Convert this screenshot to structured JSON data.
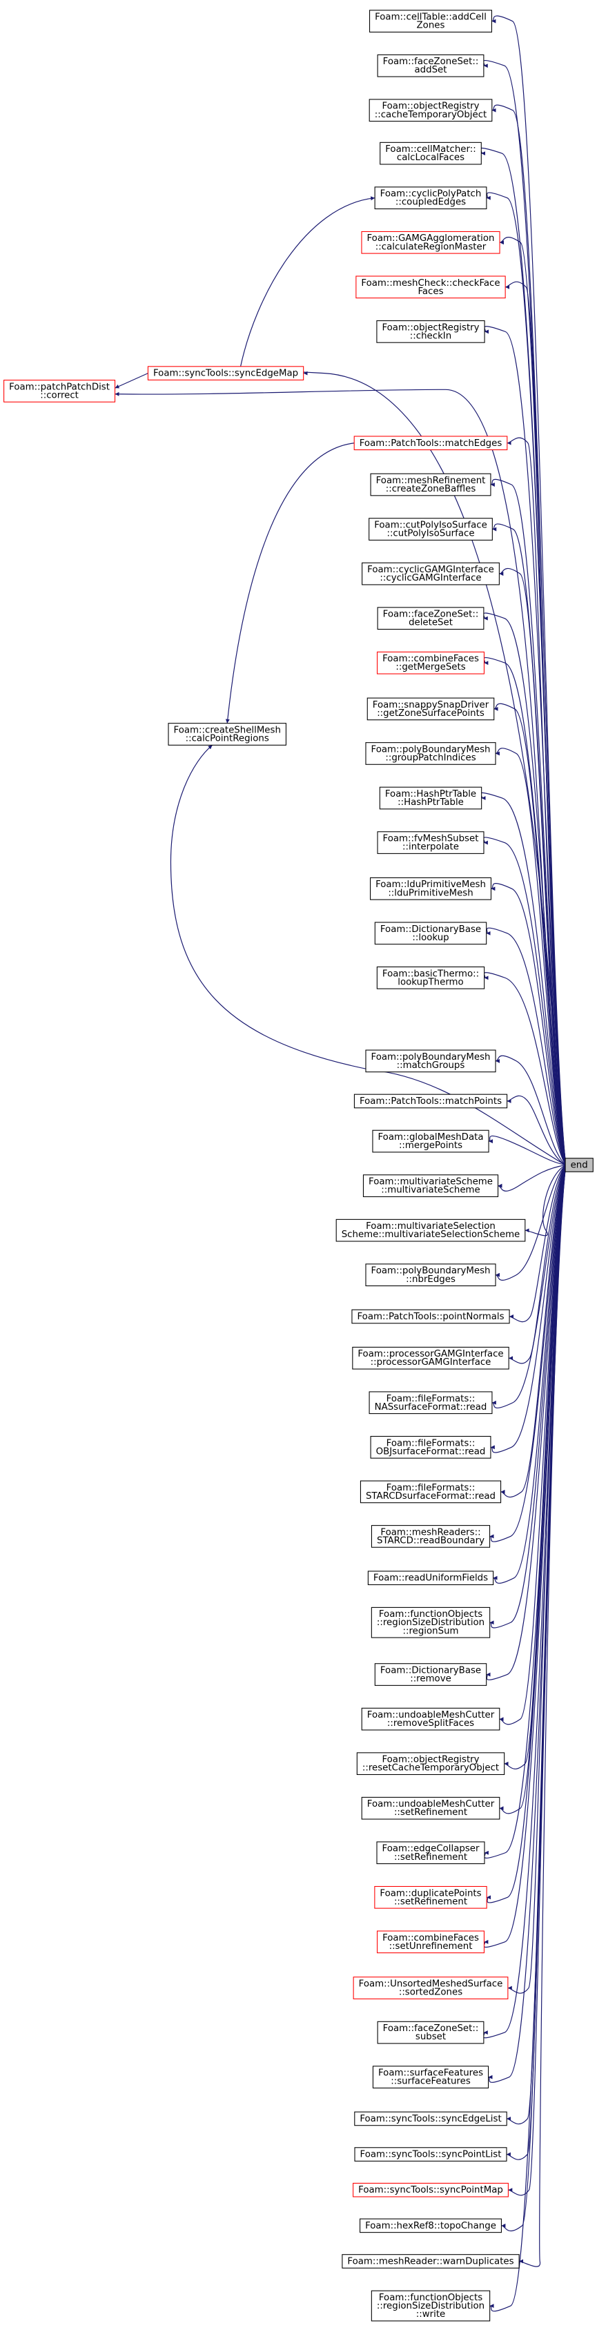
{
  "nodes": [
    {
      "lines": [
        "end"
      ]
    },
    {
      "lines": [
        "Foam::cellTable::addCell",
        "Zones"
      ]
    },
    {
      "lines": [
        "Foam::faceZoneSet::",
        "addSet"
      ]
    },
    {
      "lines": [
        "Foam::objectRegistry",
        "::cacheTemporaryObject"
      ]
    },
    {
      "lines": [
        "Foam::cellMatcher::",
        "calcLocalFaces"
      ]
    },
    {
      "lines": [
        "Foam::cyclicPolyPatch",
        "::coupledEdges"
      ]
    },
    {
      "lines": [
        "Foam::GAMGAgglomeration",
        "::calculateRegionMaster"
      ]
    },
    {
      "lines": [
        "Foam::meshCheck::checkFace",
        "Faces"
      ]
    },
    {
      "lines": [
        "Foam::objectRegistry",
        "::checkIn"
      ]
    },
    {
      "lines": [
        "Foam::syncTools::syncEdgeMap"
      ]
    },
    {
      "lines": [
        "Foam::patchPatchDist",
        "::correct"
      ]
    },
    {
      "lines": [
        "Foam::PatchTools::matchEdges"
      ]
    },
    {
      "lines": [
        "Foam::meshRefinement",
        "::createZoneBaffles"
      ]
    },
    {
      "lines": [
        "Foam::cutPolyIsoSurface",
        "::cutPolyIsoSurface"
      ]
    },
    {
      "lines": [
        "Foam::cyclicGAMGInterface",
        "::cyclicGAMGInterface"
      ]
    },
    {
      "lines": [
        "Foam::faceZoneSet::",
        "deleteSet"
      ]
    },
    {
      "lines": [
        "Foam::combineFaces",
        "::getMergeSets"
      ]
    },
    {
      "lines": [
        "Foam::snappySnapDriver",
        "::getZoneSurfacePoints"
      ]
    },
    {
      "lines": [
        "Foam::polyBoundaryMesh",
        "::groupPatchIndices"
      ]
    },
    {
      "lines": [
        "Foam::createShellMesh",
        "::calcPointRegions"
      ]
    },
    {
      "lines": [
        "Foam::HashPtrTable",
        "::HashPtrTable"
      ]
    },
    {
      "lines": [
        "Foam::fvMeshSubset",
        "::interpolate"
      ]
    },
    {
      "lines": [
        "Foam::lduPrimitiveMesh",
        "::lduPrimitiveMesh"
      ]
    },
    {
      "lines": [
        "Foam::DictionaryBase",
        "::lookup"
      ]
    },
    {
      "lines": [
        "Foam::basicThermo::",
        "lookupThermo"
      ]
    },
    {
      "lines": [
        "Foam::polyBoundaryMesh",
        "::matchGroups"
      ]
    },
    {
      "lines": [
        "Foam::PatchTools::matchPoints"
      ]
    },
    {
      "lines": [
        "Foam::globalMeshData",
        "::mergePoints"
      ]
    },
    {
      "lines": [
        "Foam::multivariateScheme",
        "::multivariateScheme"
      ]
    },
    {
      "lines": [
        "Foam::multivariateSelection",
        "Scheme::multivariateSelectionScheme"
      ]
    },
    {
      "lines": [
        "Foam::polyBoundaryMesh",
        "::nbrEdges"
      ]
    },
    {
      "lines": [
        "Foam::PatchTools::pointNormals"
      ]
    },
    {
      "lines": [
        "Foam::processorGAMGInterface",
        "::processorGAMGInterface"
      ]
    },
    {
      "lines": [
        "Foam::fileFormats::",
        "NASsurfaceFormat::read"
      ]
    },
    {
      "lines": [
        "Foam::fileFormats::",
        "OBJsurfaceFormat::read"
      ]
    },
    {
      "lines": [
        "Foam::fileFormats::",
        "STARCDsurfaceFormat::read"
      ]
    },
    {
      "lines": [
        "Foam::meshReaders::",
        "STARCD::readBoundary"
      ]
    },
    {
      "lines": [
        "Foam::readUniformFields"
      ]
    },
    {
      "lines": [
        "Foam::functionObjects",
        "::regionSizeDistribution",
        "::regionSum"
      ]
    },
    {
      "lines": [
        "Foam::DictionaryBase",
        "::remove"
      ]
    },
    {
      "lines": [
        "Foam::undoableMeshCutter",
        "::removeSplitFaces"
      ]
    },
    {
      "lines": [
        "Foam::objectRegistry",
        "::resetCacheTemporaryObject"
      ]
    },
    {
      "lines": [
        "Foam::undoableMeshCutter",
        "::setRefinement"
      ]
    },
    {
      "lines": [
        "Foam::edgeCollapser",
        "::setRefinement"
      ]
    },
    {
      "lines": [
        "Foam::duplicatePoints",
        "::setRefinement"
      ]
    },
    {
      "lines": [
        "Foam::combineFaces",
        "::setUnrefinement"
      ]
    },
    {
      "lines": [
        "Foam::UnsortedMeshedSurface",
        "::sortedZones"
      ]
    },
    {
      "lines": [
        "Foam::faceZoneSet::",
        "subset"
      ]
    },
    {
      "lines": [
        "Foam::surfaceFeatures",
        "::surfaceFeatures"
      ]
    },
    {
      "lines": [
        "Foam::syncTools::syncEdgeList"
      ]
    },
    {
      "lines": [
        "Foam::syncTools::syncPointList"
      ]
    },
    {
      "lines": [
        "Foam::syncTools::syncPointMap"
      ]
    },
    {
      "lines": [
        "Foam::hexRef8::topoChange"
      ]
    },
    {
      "lines": [
        "Foam::meshReader::warnDuplicates"
      ]
    },
    {
      "lines": [
        "Foam::functionObjects",
        "::regionSizeDistribution",
        "::write"
      ]
    }
  ]
}
